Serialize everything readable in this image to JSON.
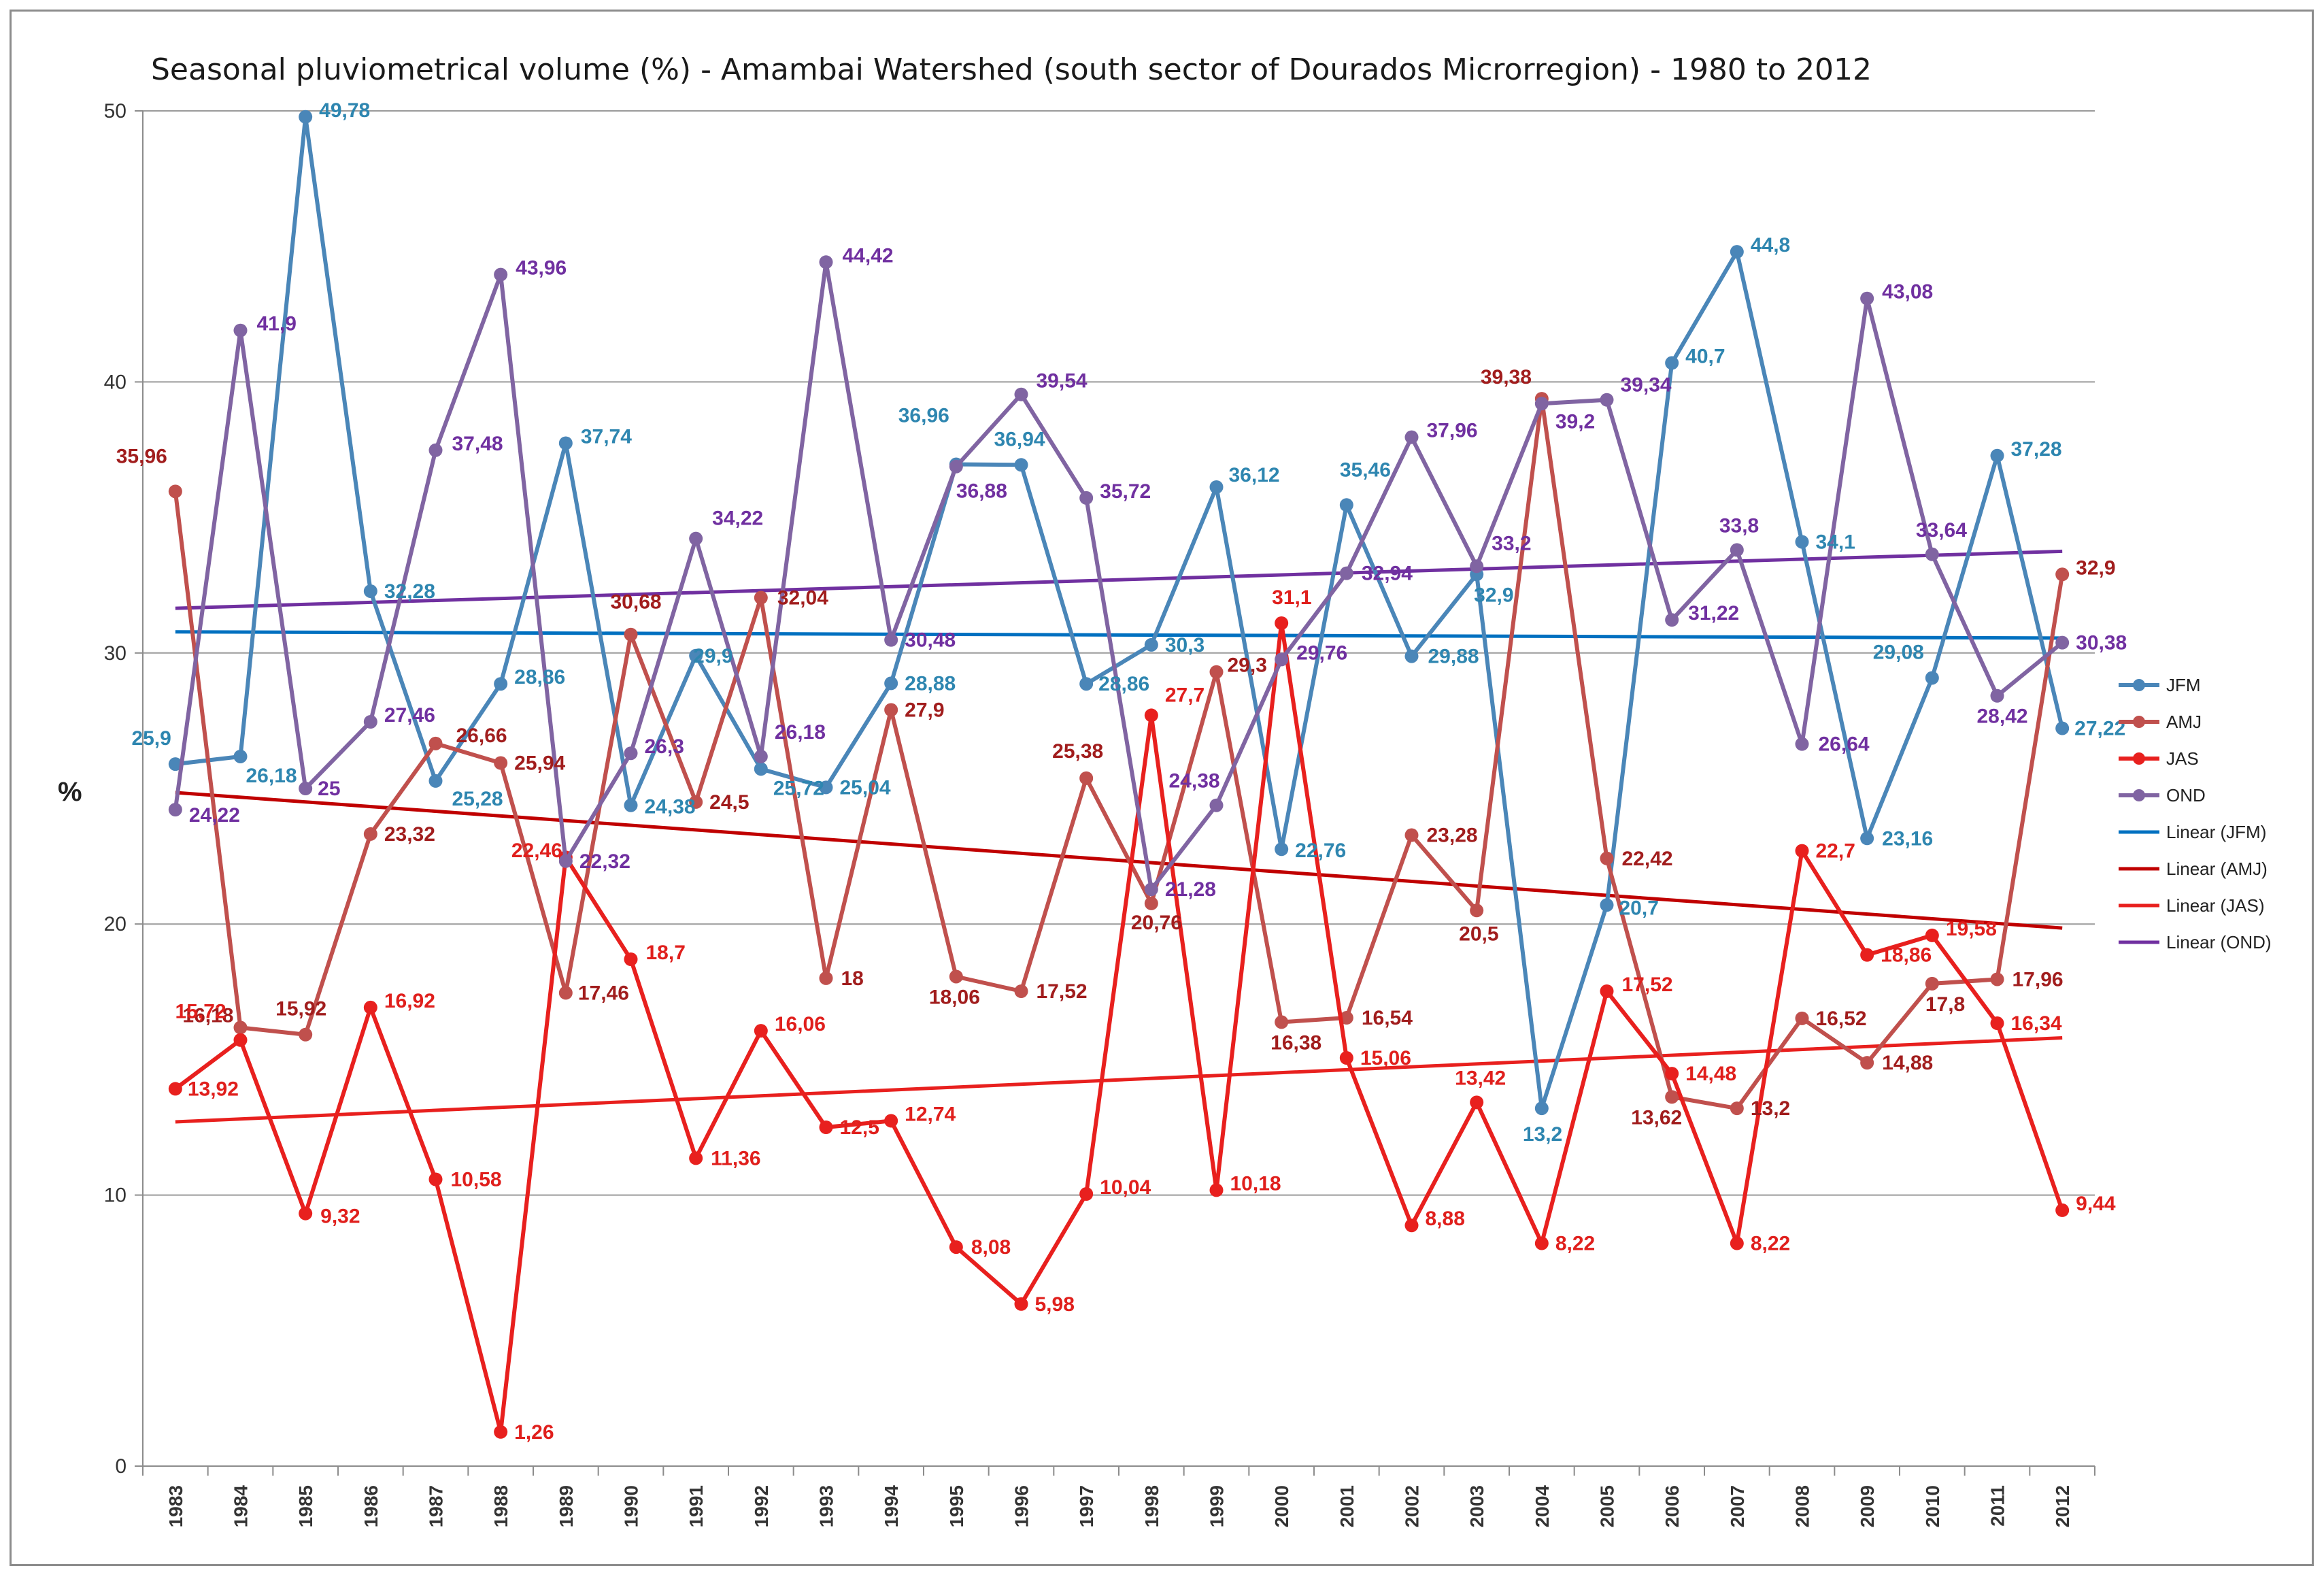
{
  "chart_data": {
    "type": "line",
    "title": "Seasonal pluviometrical volume (%) - Amambai Watershed (south sector of Dourados Microrregion) - 1980 to 2012",
    "xlabel": "",
    "ylabel": "%",
    "ylim": [
      0,
      50
    ],
    "yticks": [
      0,
      10,
      20,
      30,
      40,
      50
    ],
    "grid": true,
    "legend_position": "right",
    "categories": [
      "1983",
      "1984",
      "1985",
      "1986",
      "1987",
      "1988",
      "1989",
      "1990",
      "1991",
      "1992",
      "1993",
      "1994",
      "1995",
      "1996",
      "1997",
      "1998",
      "1999",
      "2000",
      "2001",
      "2002",
      "2003",
      "2004",
      "2005",
      "2006",
      "2007",
      "2008",
      "2009",
      "2010",
      "2011",
      "2012"
    ],
    "series": [
      {
        "name": "JFM",
        "color": "#4a86b8",
        "label_color": "#2e86b0",
        "values": [
          25.9,
          26.18,
          49.78,
          32.28,
          25.28,
          28.86,
          37.74,
          24.38,
          29.9,
          25.72,
          25.04,
          28.88,
          36.96,
          36.94,
          28.86,
          30.3,
          36.12,
          22.76,
          35.46,
          29.88,
          32.9,
          13.2,
          20.7,
          40.7,
          44.8,
          34.1,
          23.16,
          29.08,
          37.28,
          27.22
        ],
        "labels": [
          "25,9",
          "26,18",
          "49,78",
          "32,28",
          "25,28",
          "28,86",
          "37,74",
          "24,38",
          "29,9",
          "25,72",
          "25,04",
          "28,88",
          "36,96",
          "36,94",
          "28,86",
          "30,3",
          "36,12",
          "22,76",
          "35,46",
          "29,88",
          "32,9",
          "13,2",
          "20,7",
          "40,7",
          "44,8",
          "34,1",
          "23,16",
          "29,08",
          "37,28",
          "27,22"
        ]
      },
      {
        "name": "AMJ",
        "color": "#c0504d",
        "label_color": "#a11d1d",
        "values": [
          35.96,
          16.18,
          15.92,
          23.32,
          26.66,
          25.94,
          17.46,
          30.68,
          24.5,
          32.04,
          18,
          27.9,
          18.06,
          17.52,
          25.38,
          20.76,
          29.3,
          16.38,
          16.54,
          23.28,
          20.5,
          39.38,
          22.42,
          13.62,
          13.2,
          16.52,
          14.88,
          17.8,
          17.96,
          32.9
        ],
        "labels": [
          "35,96",
          "16,18",
          "15,92",
          "23,32",
          "26,66",
          "25,94",
          "17,46",
          "30,68",
          "24,5",
          "32,04",
          "18",
          "27,9",
          "18,06",
          "17,52",
          "25,38",
          "20,76",
          "29,3",
          "16,38",
          "16,54",
          "23,28",
          "20,5",
          "39,38",
          "22,42",
          "13,62",
          "13,2",
          "16,52",
          "14,88",
          "17,8",
          "17,96",
          "32,9"
        ]
      },
      {
        "name": "JAS",
        "color": "#e8201e",
        "label_color": "#e01f1c",
        "values": [
          13.92,
          15.72,
          9.32,
          16.92,
          10.58,
          1.26,
          22.46,
          18.7,
          11.36,
          16.06,
          12.5,
          12.74,
          8.08,
          5.98,
          10.04,
          27.7,
          10.18,
          31.1,
          15.06,
          8.88,
          13.42,
          8.22,
          17.52,
          14.48,
          8.22,
          22.7,
          18.86,
          19.58,
          16.34,
          9.44
        ],
        "labels": [
          "13,92",
          "15,72",
          "9,32",
          "16,92",
          "10,58",
          "1,26",
          "22,46",
          "18,7",
          "11,36",
          "16,06",
          "12,5",
          "12,74",
          "8,08",
          "5,98",
          "10,04",
          "27,7",
          "10,18",
          "31,1",
          "15,06",
          "8,88",
          "13,42",
          "8,22",
          "17,52",
          "14,48",
          "8,22",
          "22,7",
          "18,86",
          "19,58",
          "16,34",
          "9,44"
        ]
      },
      {
        "name": "OND",
        "color": "#8064a2",
        "label_color": "#7030a0",
        "values": [
          24.22,
          41.9,
          25,
          27.46,
          37.48,
          43.96,
          22.32,
          26.3,
          34.22,
          26.18,
          44.42,
          30.48,
          36.88,
          39.54,
          35.72,
          21.28,
          24.38,
          29.76,
          32.94,
          37.96,
          33.2,
          39.2,
          39.34,
          31.22,
          33.8,
          26.64,
          43.08,
          33.64,
          28.42,
          30.38
        ],
        "labels": [
          "24,22",
          "41,9",
          "25",
          "27,46",
          "37,48",
          "43,96",
          "22,32",
          "26,3",
          "34,22",
          "26,18",
          "44,42",
          "30,48",
          "36,88",
          "39,54",
          "35,72",
          "21,28",
          "24,38",
          "29,76",
          "32,94",
          "37,96",
          "33,2",
          "39,2",
          "39,34",
          "31,22",
          "33,8",
          "26,64",
          "43,08",
          "33,64",
          "28,42",
          "30,38"
        ]
      }
    ],
    "trendlines": [
      {
        "name": "Linear (JFM)",
        "color": "#0070c0",
        "start": 30.78,
        "end": 30.55
      },
      {
        "name": "Linear (AMJ)",
        "color": "#c00000",
        "start": 24.85,
        "end": 19.85
      },
      {
        "name": "Linear (JAS)",
        "color": "#e8201e",
        "start": 12.7,
        "end": 15.8
      },
      {
        "name": "Linear (OND)",
        "color": "#7030a0",
        "start": 31.65,
        "end": 33.75
      }
    ]
  }
}
